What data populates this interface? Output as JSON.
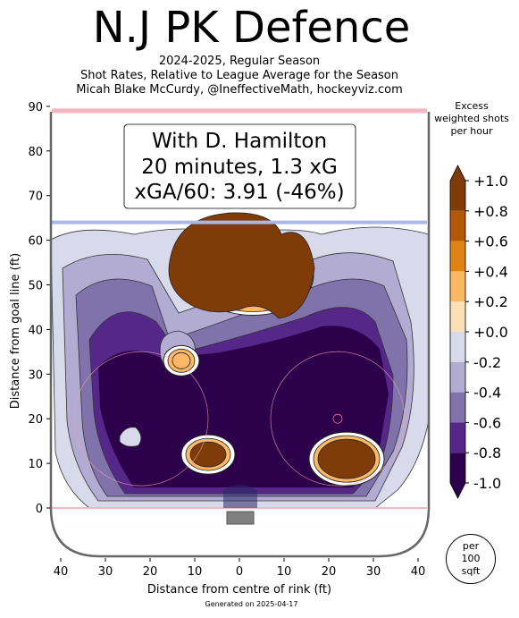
{
  "header": {
    "title": "N.J PK Defence",
    "subtitle_lines": [
      "2024-2025, Regular Season",
      "Shot Rates, Relative to League Average for the Season",
      "Micah Blake McCurdy, @IneffectiveMath, hockeyviz.com"
    ]
  },
  "info_box": {
    "line1": "With D. Hamilton",
    "line2": "20 minutes, 1.3 xG",
    "line3": "xGA/60: 3.91 (-46%)"
  },
  "colorbar": {
    "title_lines": [
      "Excess",
      "weighted shots",
      "per hour"
    ],
    "ticks": [
      "+1.0",
      "+0.8",
      "+0.6",
      "+0.4",
      "+0.2",
      "+0.0",
      "-0.2",
      "-0.4",
      "-0.6",
      "-0.8",
      "-1.0"
    ],
    "colors": [
      "#7f3b08",
      "#b35806",
      "#e08214",
      "#fdb863",
      "#fee0b6",
      "#ffffff",
      "#d8daeb",
      "#b2abd2",
      "#8073ac",
      "#542788",
      "#2d004b"
    ]
  },
  "per100_badge": [
    "per",
    "100",
    "sqft"
  ],
  "footer": {
    "generated": "Generated on 2025-04-17"
  },
  "chart_data": {
    "type": "heatmap",
    "xlabel": "Distance from centre of rink (ft)",
    "ylabel": "Distance from goal line (ft)",
    "xlim": [
      -42,
      42
    ],
    "ylim": [
      -11,
      90
    ],
    "x_ticks": [
      -40,
      -30,
      -20,
      -10,
      0,
      10,
      20,
      30,
      40
    ],
    "x_tick_labels": [
      "40",
      "30",
      "20",
      "10",
      "0",
      "10",
      "20",
      "30",
      "40"
    ],
    "y_ticks": [
      0,
      10,
      20,
      30,
      40,
      50,
      60,
      70,
      80,
      90
    ],
    "y_tick_labels": [
      "0",
      "10",
      "20",
      "30",
      "40",
      "50",
      "60",
      "70",
      "80",
      "90"
    ],
    "hot_spots": [
      {
        "x": 3,
        "y": 52,
        "value": 1.0
      },
      {
        "x": 24,
        "y": 11,
        "value": 1.0
      },
      {
        "x": -7,
        "y": 12,
        "value": 1.0
      },
      {
        "x": -13,
        "y": 33,
        "value": 0.4
      }
    ],
    "cold_region_value": -1.0
  }
}
